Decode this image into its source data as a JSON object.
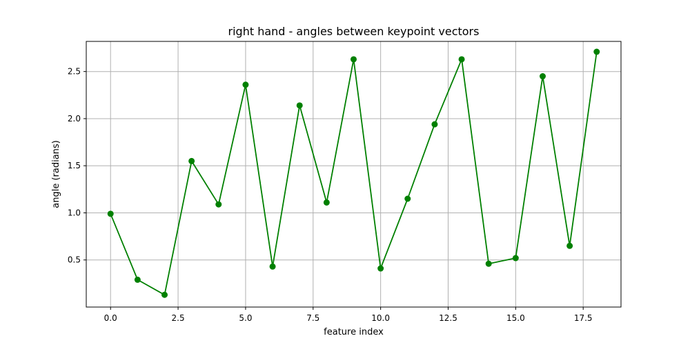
{
  "chart_data": {
    "type": "line",
    "title": "right hand - angles between keypoint vectors",
    "xlabel": "feature index",
    "ylabel": "angle (radians)",
    "xlim": [
      -0.9,
      18.9
    ],
    "ylim": [
      0.0,
      2.82
    ],
    "xticks": [
      0.0,
      2.5,
      5.0,
      7.5,
      10.0,
      12.5,
      15.0,
      17.5
    ],
    "xtick_labels": [
      "0.0",
      "2.5",
      "5.0",
      "7.5",
      "10.0",
      "12.5",
      "15.0",
      "17.5"
    ],
    "yticks": [
      0.5,
      1.0,
      1.5,
      2.0,
      2.5
    ],
    "ytick_labels": [
      "0.5",
      "1.0",
      "1.5",
      "2.0",
      "2.5"
    ],
    "grid": true,
    "series": [
      {
        "color": "#008000",
        "marker": "circle",
        "x": [
          0,
          1,
          2,
          3,
          4,
          5,
          6,
          7,
          8,
          9,
          10,
          11,
          12,
          13,
          14,
          15,
          16,
          17,
          18
        ],
        "y": [
          0.99,
          0.29,
          0.13,
          1.55,
          1.09,
          2.36,
          0.43,
          2.14,
          1.11,
          2.63,
          0.41,
          1.15,
          1.94,
          2.63,
          0.46,
          0.52,
          2.45,
          0.65,
          2.71
        ]
      }
    ]
  }
}
